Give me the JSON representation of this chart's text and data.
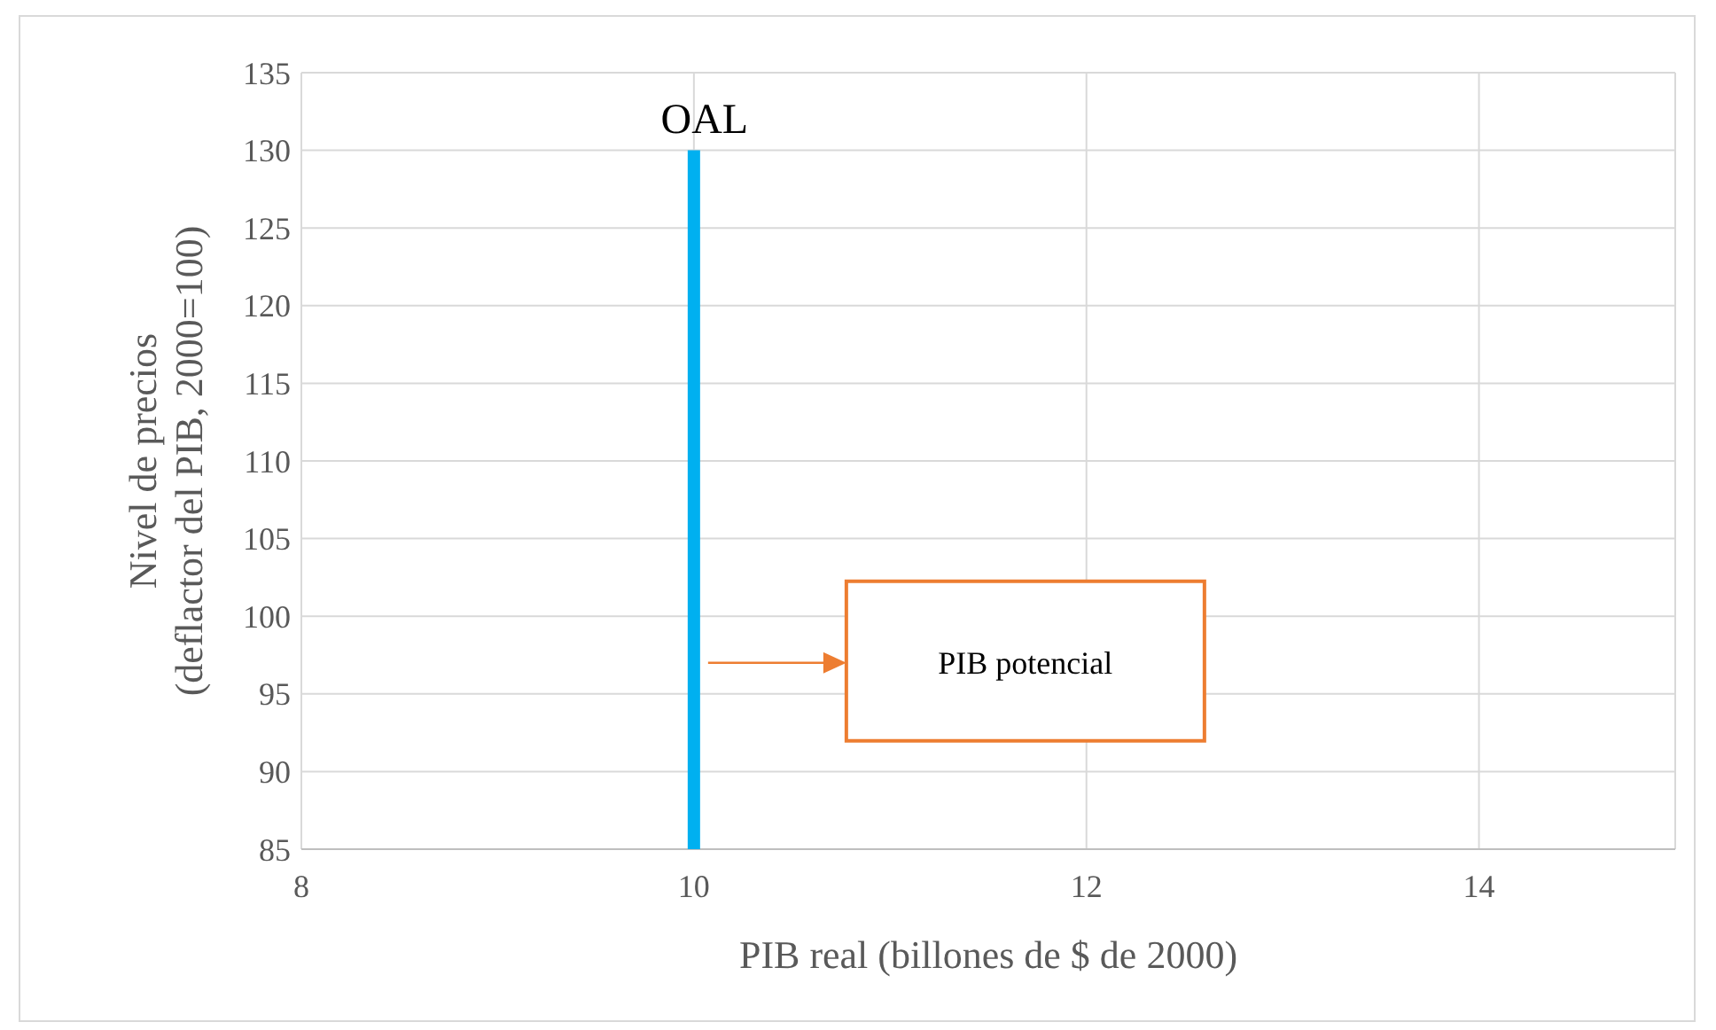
{
  "chart_data": {
    "type": "line",
    "xlabel": "PIB real (billones de $ de 2000)",
    "ylabel": "Nivel de precios\n(deflactor del PIB, 2000=100)",
    "x": [
      10,
      10
    ],
    "series": [
      {
        "name": "OAL",
        "color": "#00b0f0",
        "values": [
          85,
          130
        ]
      }
    ],
    "xlim": [
      8,
      15
    ],
    "xticks": [
      8,
      10,
      12,
      14
    ],
    "ylim": [
      85,
      135
    ],
    "yticks": [
      85,
      90,
      95,
      100,
      105,
      110,
      115,
      120,
      125,
      130,
      135
    ],
    "grid": true,
    "marker": "none",
    "line_style": "solid",
    "annotations": [
      "PIB potencial"
    ]
  }
}
